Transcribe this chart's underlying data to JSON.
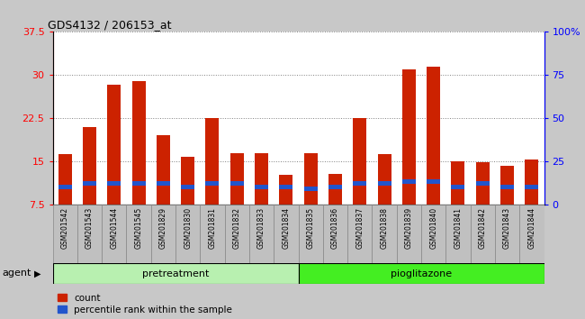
{
  "title": "GDS4132 / 206153_at",
  "samples": [
    "GSM201542",
    "GSM201543",
    "GSM201544",
    "GSM201545",
    "GSM201829",
    "GSM201830",
    "GSM201831",
    "GSM201832",
    "GSM201833",
    "GSM201834",
    "GSM201835",
    "GSM201836",
    "GSM201837",
    "GSM201838",
    "GSM201839",
    "GSM201840",
    "GSM201841",
    "GSM201842",
    "GSM201843",
    "GSM201844"
  ],
  "counts": [
    16.2,
    21.0,
    28.3,
    29.0,
    19.5,
    15.8,
    22.5,
    16.3,
    16.3,
    12.6,
    16.3,
    12.8,
    22.5,
    16.2,
    31.0,
    31.5,
    15.0,
    14.8,
    14.2,
    15.2
  ],
  "percentile_ranks_pct": [
    10,
    12,
    12,
    12,
    12,
    10,
    12,
    12,
    10,
    10,
    9,
    10,
    12,
    12,
    13,
    13,
    10,
    12,
    10,
    10
  ],
  "ymin": 7.5,
  "ymax": 37.5,
  "yticks": [
    7.5,
    15.0,
    22.5,
    30.0,
    37.5
  ],
  "right_yticks_pct": [
    0,
    25,
    50,
    75,
    100
  ],
  "right_ylabels": [
    "0",
    "25",
    "50",
    "75",
    "100%"
  ],
  "bar_color": "#cc2200",
  "percentile_color": "#2255cc",
  "bg_color": "#c8c8c8",
  "plot_bg_color": "#ffffff",
  "pretreatment_color": "#b8f0b0",
  "pioglitazone_color": "#44ee22",
  "legend_count": "count",
  "legend_pct": "percentile rank within the sample",
  "agent_label": "agent",
  "pretreatment_label": "pretreatment",
  "pioglitazone_label": "pioglitazone",
  "pretreatment_n": 10,
  "n_samples": 20,
  "bar_width": 0.55
}
